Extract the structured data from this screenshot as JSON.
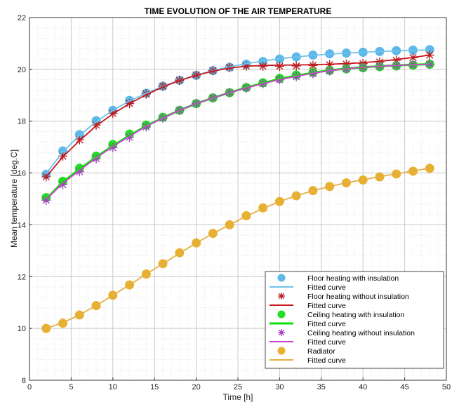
{
  "chart_data": {
    "type": "scatter",
    "title": "TIME EVOLUTION OF THE AIR TEMPERATURE",
    "xlabel": "Time [h]",
    "ylabel": "Mean temperature [deg.C]",
    "xlim": [
      0,
      50
    ],
    "ylim": [
      8,
      22
    ],
    "xticks": [
      0,
      5,
      10,
      15,
      20,
      25,
      30,
      35,
      40,
      45,
      50
    ],
    "yticks": [
      8,
      10,
      12,
      14,
      16,
      18,
      20,
      22
    ],
    "grid": true,
    "legend_position": "bottom-right",
    "x": [
      2,
      4,
      6,
      8,
      10,
      12,
      14,
      16,
      18,
      20,
      22,
      24,
      26,
      28,
      30,
      32,
      34,
      36,
      38,
      40,
      42,
      44,
      46,
      48
    ],
    "series": [
      {
        "name": "Floor heating with insulation",
        "marker": "circle",
        "color": "#5bb8e8",
        "values": [
          15.95,
          16.85,
          17.48,
          18.02,
          18.42,
          18.8,
          19.08,
          19.35,
          19.58,
          19.77,
          19.95,
          20.08,
          20.2,
          20.3,
          20.4,
          20.48,
          20.55,
          20.6,
          20.63,
          20.66,
          20.69,
          20.72,
          20.74,
          20.76
        ]
      },
      {
        "name": "Fitted curve",
        "line_color": "#6ec3ea",
        "values": [
          15.98,
          16.82,
          17.45,
          17.98,
          18.42,
          18.78,
          19.08,
          19.35,
          19.58,
          19.78,
          19.95,
          20.1,
          20.22,
          20.32,
          20.41,
          20.48,
          20.54,
          20.59,
          20.63,
          20.66,
          20.69,
          20.71,
          20.73,
          20.75
        ]
      },
      {
        "name": "Floor heating without insulation",
        "marker": "asterisk",
        "color": "#b22222",
        "values": [
          15.85,
          16.65,
          17.28,
          17.85,
          18.3,
          18.68,
          19.05,
          19.35,
          19.58,
          19.78,
          19.95,
          20.08,
          20.12,
          20.12,
          20.12,
          20.13,
          20.15,
          20.18,
          20.2,
          20.22,
          20.28,
          20.35,
          20.45,
          20.55
        ]
      },
      {
        "name": "Fitted curve",
        "line_color": "#c8161d",
        "values": [
          15.85,
          16.62,
          17.25,
          17.82,
          18.28,
          18.68,
          19.02,
          19.32,
          19.57,
          19.77,
          19.93,
          20.05,
          20.12,
          20.15,
          20.16,
          20.17,
          20.18,
          20.2,
          20.22,
          20.26,
          20.31,
          20.38,
          20.46,
          20.55
        ]
      },
      {
        "name": "Ceiling heating with insulation",
        "marker": "circle",
        "color": "#22dd22",
        "values": [
          15.05,
          15.68,
          16.18,
          16.65,
          17.1,
          17.5,
          17.85,
          18.15,
          18.42,
          18.68,
          18.9,
          19.1,
          19.3,
          19.48,
          19.65,
          19.78,
          19.88,
          19.96,
          20.02,
          20.06,
          20.1,
          20.13,
          20.16,
          20.2
        ]
      },
      {
        "name": "Fitted curve",
        "line_color": "#11dd11",
        "values": [
          15.0,
          15.65,
          16.15,
          16.62,
          17.05,
          17.45,
          17.82,
          18.13,
          18.42,
          18.68,
          18.9,
          19.1,
          19.3,
          19.47,
          19.63,
          19.76,
          19.87,
          19.96,
          20.03,
          20.08,
          20.12,
          20.15,
          20.18,
          20.2
        ]
      },
      {
        "name": "Ceiling heating without insulation",
        "marker": "asterisk",
        "color": "#a040c0",
        "values": [
          14.95,
          15.55,
          16.05,
          16.55,
          16.98,
          17.38,
          17.78,
          18.12,
          18.42,
          18.68,
          18.9,
          19.1,
          19.28,
          19.45,
          19.6,
          19.72,
          19.84,
          19.94,
          20.02,
          20.08,
          20.12,
          20.15,
          20.18,
          20.2
        ]
      },
      {
        "name": "Fitted curve",
        "line_color": "#cc44cc",
        "values": [
          14.98,
          15.6,
          16.1,
          16.58,
          17.02,
          17.42,
          17.8,
          18.12,
          18.42,
          18.68,
          18.9,
          19.1,
          19.28,
          19.45,
          19.6,
          19.73,
          19.85,
          19.95,
          20.02,
          20.08,
          20.12,
          20.15,
          20.18,
          20.2
        ]
      },
      {
        "name": "Radiator",
        "marker": "circle",
        "color": "#e8b030",
        "values": [
          10.0,
          10.2,
          10.52,
          10.88,
          11.28,
          11.68,
          12.1,
          12.5,
          12.92,
          13.3,
          13.67,
          14.0,
          14.35,
          14.65,
          14.9,
          15.12,
          15.32,
          15.48,
          15.62,
          15.73,
          15.85,
          15.96,
          16.07,
          16.18
        ]
      },
      {
        "name": "Fitted curve",
        "line_color": "#e3b040",
        "values": [
          10.0,
          10.22,
          10.52,
          10.88,
          11.28,
          11.68,
          12.1,
          12.5,
          12.9,
          13.3,
          13.66,
          14.0,
          14.33,
          14.63,
          14.9,
          15.12,
          15.32,
          15.48,
          15.62,
          15.74,
          15.86,
          15.97,
          16.08,
          16.18
        ]
      }
    ]
  }
}
